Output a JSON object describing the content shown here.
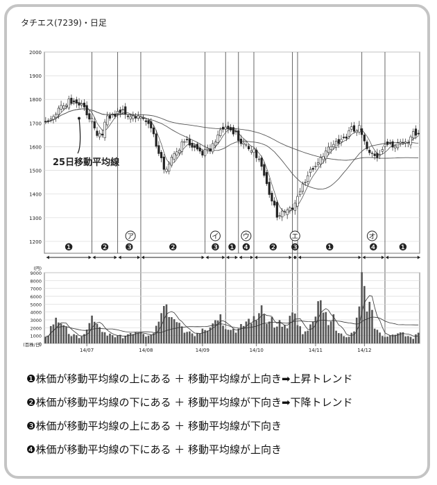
{
  "chart_data": {
    "type": "candlestick",
    "title": "タチエス(7239)・日足",
    "price_axis": {
      "ticks": [
        1200,
        1300,
        1400,
        1500,
        1600,
        1700,
        1800,
        1900,
        2000
      ],
      "ylim": [
        1150,
        2000
      ]
    },
    "volume_axis": {
      "unit_top": "(円)",
      "unit_bottom": "(百株/日)",
      "ticks": [
        0,
        1000,
        2000,
        3000,
        4000,
        5000,
        6000,
        7000,
        8000,
        9000
      ],
      "ylim": [
        0,
        9000
      ]
    },
    "x_ticks": [
      {
        "label": "14/07",
        "day": 16
      },
      {
        "label": "14/08",
        "day": 39
      },
      {
        "label": "14/09",
        "day": 61
      },
      {
        "label": "14/10",
        "day": 82
      },
      {
        "label": "14/11",
        "day": 105
      },
      {
        "label": "14/12",
        "day": 124
      }
    ],
    "n_days": 146,
    "annotation": {
      "text": "25日移動平均線",
      "day": 13,
      "price": 1720
    },
    "phase_boundaries": [
      18,
      28,
      37,
      62,
      70,
      75,
      81,
      96,
      98,
      123,
      132
    ],
    "phase_lines": [
      37,
      70,
      81,
      96,
      98,
      123,
      132
    ],
    "phases": [
      {
        "label": "❶",
        "from": 0,
        "to": 18
      },
      {
        "label": "❷",
        "from": 18,
        "to": 28
      },
      {
        "label": "❸",
        "from": 28,
        "to": 37
      },
      {
        "label": "❷",
        "from": 37,
        "to": 62
      },
      {
        "label": "❸",
        "from": 62,
        "to": 70
      },
      {
        "label": "❶",
        "from": 70,
        "to": 75
      },
      {
        "label": "❹",
        "from": 75,
        "to": 81
      },
      {
        "label": "❷",
        "from": 81,
        "to": 96
      },
      {
        "label": "❸",
        "from": 96,
        "to": 98
      },
      {
        "label": "❶",
        "from": 98,
        "to": 123
      },
      {
        "label": "❹",
        "from": 123,
        "to": 132
      },
      {
        "label": "❶",
        "from": 132,
        "to": 146
      }
    ],
    "markers": [
      {
        "label": "ア",
        "day": 33
      },
      {
        "label": "イ",
        "day": 66
      },
      {
        "label": "ウ",
        "day": 78
      },
      {
        "label": "エ",
        "day": 97
      },
      {
        "label": "オ",
        "day": 127
      }
    ],
    "close_anchors": [
      [
        0,
        1700
      ],
      [
        3,
        1740
      ],
      [
        6,
        1780
      ],
      [
        9,
        1790
      ],
      [
        12,
        1770
      ],
      [
        15,
        1760
      ],
      [
        18,
        1720
      ],
      [
        20,
        1650
      ],
      [
        22,
        1670
      ],
      [
        24,
        1710
      ],
      [
        26,
        1720
      ],
      [
        28,
        1730
      ],
      [
        30,
        1750
      ],
      [
        33,
        1740
      ],
      [
        36,
        1740
      ],
      [
        39,
        1700
      ],
      [
        42,
        1640
      ],
      [
        44,
        1560
      ],
      [
        46,
        1510
      ],
      [
        48,
        1540
      ],
      [
        51,
        1590
      ],
      [
        54,
        1620
      ],
      [
        57,
        1590
      ],
      [
        60,
        1570
      ],
      [
        62,
        1590
      ],
      [
        64,
        1600
      ],
      [
        66,
        1640
      ],
      [
        68,
        1660
      ],
      [
        70,
        1670
      ],
      [
        72,
        1660
      ],
      [
        75,
        1640
      ],
      [
        78,
        1610
      ],
      [
        81,
        1600
      ],
      [
        84,
        1500
      ],
      [
        86,
        1430
      ],
      [
        88,
        1360
      ],
      [
        90,
        1320
      ],
      [
        92,
        1330
      ],
      [
        94,
        1340
      ],
      [
        96,
        1350
      ],
      [
        98,
        1380
      ],
      [
        100,
        1430
      ],
      [
        102,
        1470
      ],
      [
        104,
        1500
      ],
      [
        106,
        1540
      ],
      [
        108,
        1580
      ],
      [
        110,
        1600
      ],
      [
        112,
        1620
      ],
      [
        114,
        1600
      ],
      [
        116,
        1620
      ],
      [
        118,
        1650
      ],
      [
        120,
        1680
      ],
      [
        122,
        1690
      ],
      [
        123,
        1660
      ],
      [
        125,
        1600
      ],
      [
        127,
        1560
      ],
      [
        129,
        1550
      ],
      [
        131,
        1580
      ],
      [
        133,
        1600
      ],
      [
        135,
        1620
      ],
      [
        138,
        1630
      ],
      [
        142,
        1640
      ],
      [
        145,
        1650
      ]
    ],
    "volume_anchors": [
      [
        0,
        1500
      ],
      [
        4,
        2300
      ],
      [
        8,
        1700
      ],
      [
        10,
        1300
      ],
      [
        14,
        1000
      ],
      [
        16,
        1800
      ],
      [
        18,
        2500
      ],
      [
        20,
        2000
      ],
      [
        22,
        1400
      ],
      [
        26,
        1300
      ],
      [
        30,
        1200
      ],
      [
        34,
        1100
      ],
      [
        38,
        1000
      ],
      [
        41,
        1500
      ],
      [
        44,
        3600
      ],
      [
        46,
        4300
      ],
      [
        48,
        2600
      ],
      [
        52,
        2200
      ],
      [
        56,
        1600
      ],
      [
        60,
        1300
      ],
      [
        64,
        1500
      ],
      [
        66,
        2400
      ],
      [
        68,
        2800
      ],
      [
        70,
        2200
      ],
      [
        72,
        1900
      ],
      [
        74,
        2000
      ],
      [
        76,
        1900
      ],
      [
        78,
        2200
      ],
      [
        80,
        2300
      ],
      [
        82,
        2700
      ],
      [
        84,
        4900
      ],
      [
        86,
        3200
      ],
      [
        88,
        3400
      ],
      [
        90,
        2400
      ],
      [
        92,
        2000
      ],
      [
        94,
        1600
      ],
      [
        96,
        3900
      ],
      [
        98,
        2400
      ],
      [
        100,
        2100
      ],
      [
        102,
        2300
      ],
      [
        104,
        2800
      ],
      [
        106,
        4300
      ],
      [
        108,
        3400
      ],
      [
        110,
        2300
      ],
      [
        112,
        2700
      ],
      [
        114,
        1900
      ],
      [
        116,
        1500
      ],
      [
        118,
        1200
      ],
      [
        120,
        1800
      ],
      [
        122,
        3500
      ],
      [
        123,
        7900
      ],
      [
        124,
        5800
      ],
      [
        125,
        3200
      ],
      [
        126,
        4200
      ],
      [
        128,
        3100
      ],
      [
        130,
        1900
      ],
      [
        132,
        1400
      ],
      [
        134,
        1200
      ],
      [
        136,
        900
      ],
      [
        138,
        1300
      ],
      [
        140,
        800
      ],
      [
        142,
        700
      ],
      [
        145,
        1700
      ]
    ]
  },
  "legend": [
    {
      "num": "❶",
      "text": "株価が移動平均線の上にある ＋ 移動平均線が上向き➡上昇トレンド"
    },
    {
      "num": "❷",
      "text": "株価が移動平均線の下にある ＋ 移動平均線が下向き➡下降トレンド"
    },
    {
      "num": "❸",
      "text": "株価が移動平均線の上にある ＋ 移動平均線が下向き"
    },
    {
      "num": "❹",
      "text": "株価が移動平均線の下にある ＋ 移動平均線が上向き"
    }
  ]
}
